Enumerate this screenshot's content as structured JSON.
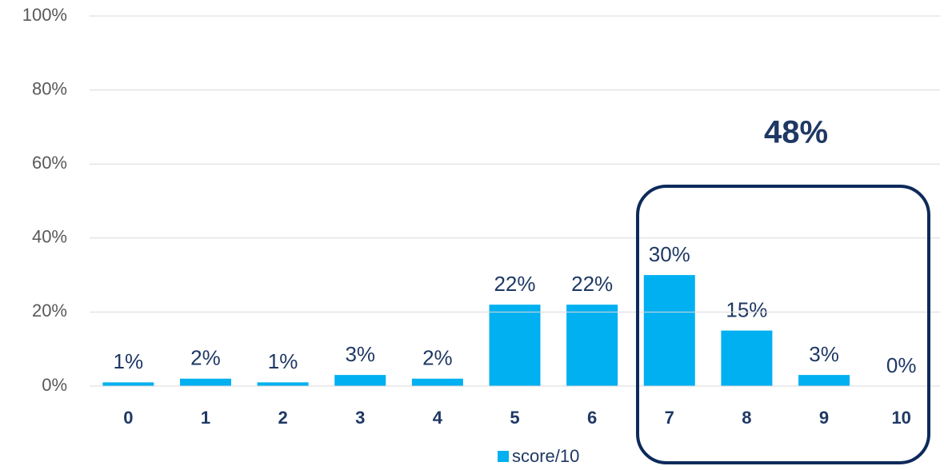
{
  "chart_data": {
    "type": "bar",
    "categories": [
      "0",
      "1",
      "2",
      "3",
      "4",
      "5",
      "6",
      "7",
      "8",
      "9",
      "10"
    ],
    "series": [
      {
        "name": "score/10",
        "color": "#00b0f0",
        "values": [
          1,
          2,
          1,
          3,
          2,
          22,
          22,
          30,
          15,
          3,
          0
        ],
        "value_labels": [
          "1%",
          "2%",
          "1%",
          "3%",
          "2%",
          "22%",
          "22%",
          "30%",
          "15%",
          "3%",
          "0%"
        ]
      }
    ],
    "ylim": [
      0,
      100
    ],
    "yticks": [
      {
        "value": 0,
        "label": "0%"
      },
      {
        "value": 20,
        "label": "20%"
      },
      {
        "value": 40,
        "label": "40%"
      },
      {
        "value": 60,
        "label": "60%"
      },
      {
        "value": 80,
        "label": "80%"
      },
      {
        "value": 100,
        "label": "100%"
      }
    ],
    "grid": true,
    "annotation": "48%"
  }
}
